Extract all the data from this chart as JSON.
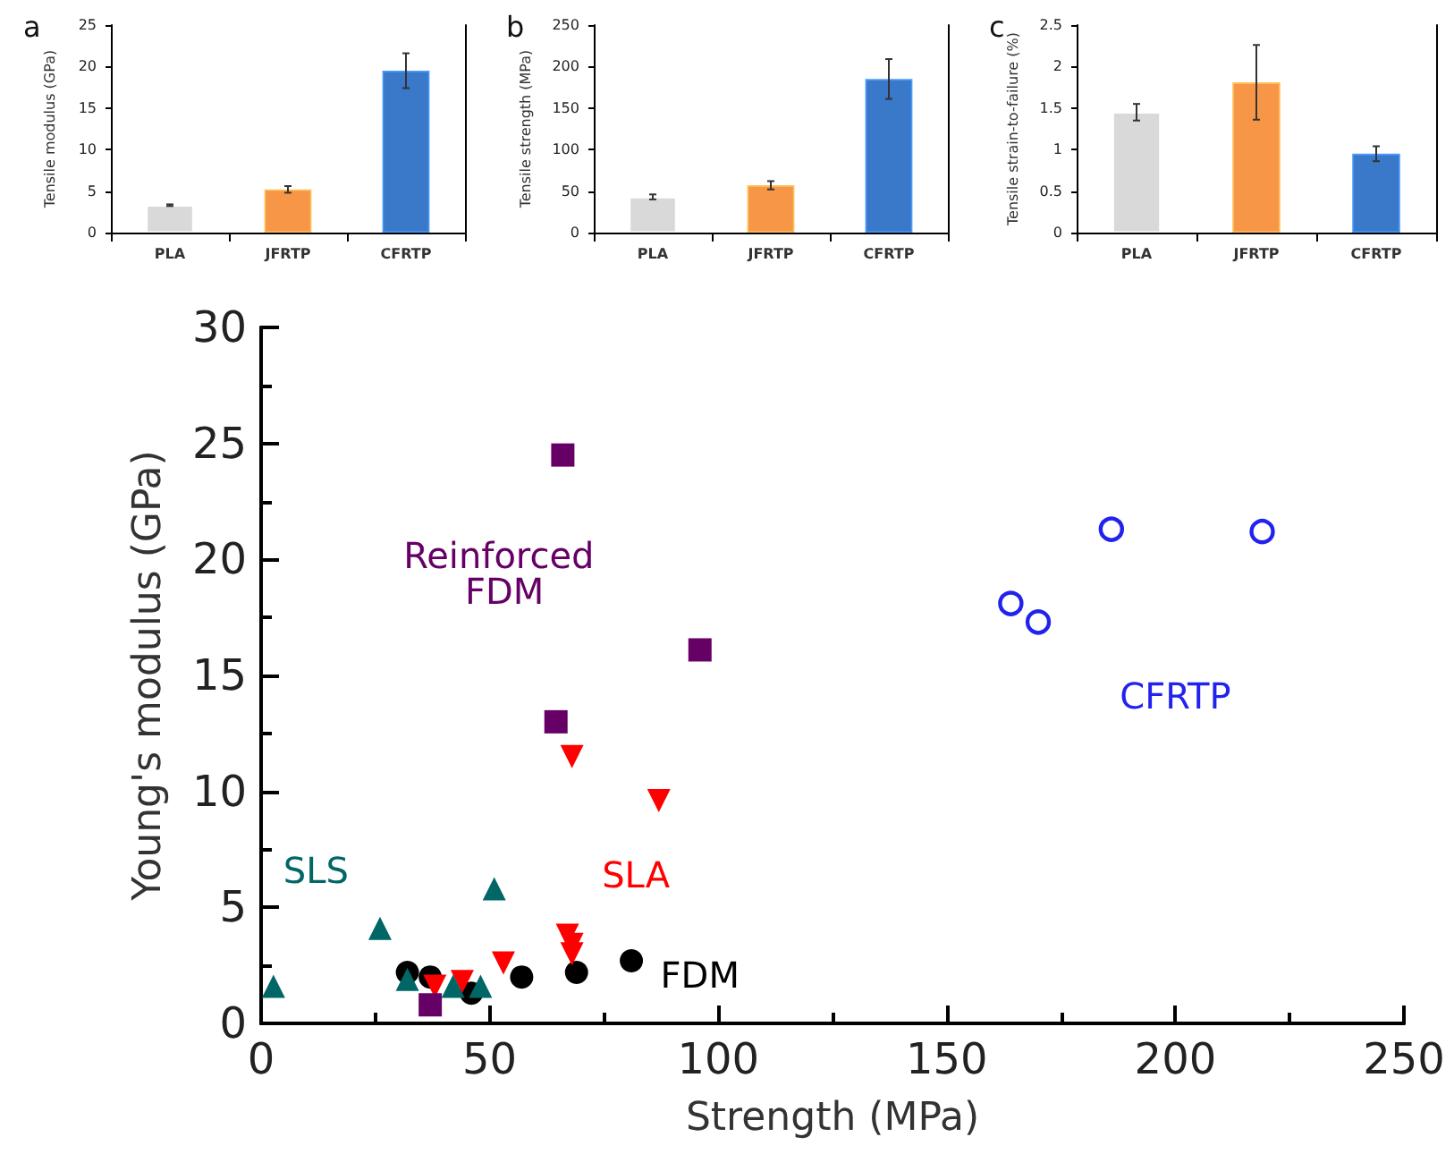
{
  "chart_data": [
    {
      "type": "bar",
      "title": "a",
      "ylabel": "Tensile modulus (GPa)",
      "categories": [
        "PLA",
        "JFRTP",
        "CFRTP"
      ],
      "values": [
        3.3,
        5.2,
        19.5
      ],
      "errors": [
        0.1,
        0.4,
        2.1
      ],
      "colors": [
        "#d9d9d9",
        "#f79646",
        "#3a78c9"
      ],
      "ylim": [
        0,
        25
      ],
      "yticks": [
        0,
        5,
        10,
        15,
        20,
        25
      ],
      "grid": false,
      "legend": false
    },
    {
      "type": "bar",
      "title": "b",
      "ylabel": "Tensile strength (MPa)",
      "categories": [
        "PLA",
        "JFRTP",
        "CFRTP"
      ],
      "values": [
        43,
        57,
        185
      ],
      "errors": [
        3,
        5,
        24
      ],
      "colors": [
        "#d9d9d9",
        "#f79646",
        "#3a78c9"
      ],
      "ylim": [
        0,
        250
      ],
      "yticks": [
        0,
        50,
        100,
        150,
        200,
        250
      ],
      "grid": false,
      "legend": false
    },
    {
      "type": "bar",
      "title": "c",
      "ylabel": "Tensile strain-to-failure (%)",
      "categories": [
        "PLA",
        "JFRTP",
        "CFRTP"
      ],
      "values": [
        1.45,
        1.81,
        0.95
      ],
      "errors": [
        0.1,
        0.45,
        0.09
      ],
      "colors": [
        "#d9d9d9",
        "#f79646",
        "#3a78c9"
      ],
      "ylim": [
        0,
        2.5
      ],
      "yticks": [
        0,
        0.5,
        1,
        1.5,
        2,
        2.5
      ],
      "grid": false,
      "legend": false
    },
    {
      "type": "scatter",
      "xlabel": "Strength (MPa)",
      "ylabel": "Young's modulus (GPa)",
      "xlim": [
        0,
        250
      ],
      "xticks": [
        0,
        50,
        100,
        150,
        200,
        250
      ],
      "ylim": [
        0,
        30
      ],
      "yticks": [
        0,
        5,
        10,
        15,
        20,
        25,
        30
      ],
      "grid": false,
      "legend": false,
      "series": [
        {
          "name": "Reinforced FDM",
          "color": "#660066",
          "marker": "square",
          "x": [
            66,
            96,
            64.5,
            37
          ],
          "values": [
            24.5,
            16.1,
            13,
            0.8
          ]
        },
        {
          "name": "CFRTP",
          "color": "#2222ee",
          "marker": "circle-open",
          "x": [
            164,
            170,
            186,
            219
          ],
          "values": [
            18.1,
            17.3,
            21.3,
            21.2
          ]
        },
        {
          "name": "SLS",
          "color": "#006666",
          "marker": "triangle",
          "x": [
            2.7,
            26,
            51,
            32,
            42,
            48
          ],
          "values": [
            1.6,
            4.1,
            5.8,
            1.9,
            1.6,
            1.6
          ]
        },
        {
          "name": "SLA",
          "color": "#ff0000",
          "marker": "triangle-down",
          "x": [
            68,
            87,
            67,
            68,
            68,
            53,
            44,
            38
          ],
          "values": [
            11.5,
            9.6,
            3.8,
            3.4,
            3,
            2.6,
            1.8,
            1.6
          ]
        },
        {
          "name": "FDM",
          "color": "#000000",
          "marker": "circle",
          "x": [
            32,
            37,
            46,
            57,
            69,
            81
          ],
          "values": [
            2.2,
            2,
            1.3,
            2,
            2.2,
            2.7
          ]
        }
      ]
    }
  ]
}
